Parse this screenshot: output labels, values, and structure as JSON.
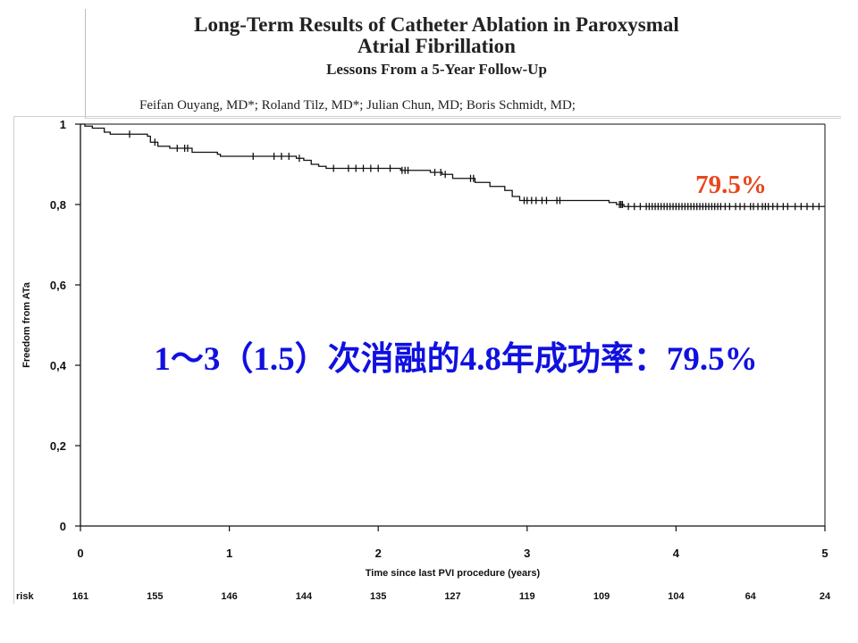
{
  "header": {
    "title_line1": "Long-Term Results of Catheter Ablation in Paroxysmal",
    "title_line2": "Atrial Fibrillation",
    "subtitle": "Lessons From a 5-Year Follow-Up",
    "authors": "Feifan Ouyang, MD*; Roland Tilz, MD*; Julian Chun, MD; Boris Schmidt, MD;"
  },
  "chart_data": {
    "type": "line",
    "subtype": "kaplan-meier",
    "title": "",
    "xlabel": "Time since last PVI procedure (years)",
    "ylabel": "Freedom from ATa",
    "xlim": [
      0,
      5
    ],
    "ylim": [
      0,
      1
    ],
    "x_ticks": [
      "0",
      "1",
      "2",
      "3",
      "4",
      "5"
    ],
    "y_ticks": [
      "0",
      "0,2",
      "0,4",
      "0,6",
      "0,8",
      "1"
    ],
    "series": [
      {
        "name": "Freedom from ATa",
        "color": "#111111",
        "steps": [
          {
            "x": 0,
            "y": 1.0
          },
          {
            "x": 0.03,
            "y": 0.995
          },
          {
            "x": 0.08,
            "y": 0.99
          },
          {
            "x": 0.16,
            "y": 0.98
          },
          {
            "x": 0.2,
            "y": 0.975
          },
          {
            "x": 0.45,
            "y": 0.97
          },
          {
            "x": 0.47,
            "y": 0.955
          },
          {
            "x": 0.52,
            "y": 0.945
          },
          {
            "x": 0.6,
            "y": 0.94
          },
          {
            "x": 0.75,
            "y": 0.93
          },
          {
            "x": 0.92,
            "y": 0.925
          },
          {
            "x": 0.94,
            "y": 0.92
          },
          {
            "x": 1.45,
            "y": 0.915
          },
          {
            "x": 1.5,
            "y": 0.91
          },
          {
            "x": 1.55,
            "y": 0.9
          },
          {
            "x": 1.6,
            "y": 0.895
          },
          {
            "x": 1.65,
            "y": 0.89
          },
          {
            "x": 2.15,
            "y": 0.885
          },
          {
            "x": 2.35,
            "y": 0.88
          },
          {
            "x": 2.43,
            "y": 0.875
          },
          {
            "x": 2.5,
            "y": 0.865
          },
          {
            "x": 2.65,
            "y": 0.855
          },
          {
            "x": 2.75,
            "y": 0.845
          },
          {
            "x": 2.85,
            "y": 0.835
          },
          {
            "x": 2.9,
            "y": 0.82
          },
          {
            "x": 2.95,
            "y": 0.81
          },
          {
            "x": 3.55,
            "y": 0.805
          },
          {
            "x": 3.6,
            "y": 0.8
          },
          {
            "x": 3.65,
            "y": 0.795
          },
          {
            "x": 5.0,
            "y": 0.795
          }
        ],
        "censored": [
          0.33,
          0.5,
          0.65,
          0.7,
          0.72,
          1.16,
          1.3,
          1.35,
          1.4,
          1.47,
          1.7,
          1.8,
          1.85,
          1.9,
          1.95,
          2.0,
          2.08,
          2.16,
          2.18,
          2.2,
          2.38,
          2.42,
          2.45,
          2.62,
          2.64,
          2.98,
          3.0,
          3.03,
          3.06,
          3.1,
          3.13,
          3.2,
          3.22,
          3.62,
          3.63,
          3.64,
          3.68,
          3.72,
          3.76,
          3.8,
          3.82,
          3.84,
          3.86,
          3.88,
          3.9,
          3.92,
          3.94,
          3.96,
          3.98,
          4.0,
          4.02,
          4.04,
          4.06,
          4.08,
          4.1,
          4.12,
          4.14,
          4.16,
          4.18,
          4.2,
          4.22,
          4.24,
          4.26,
          4.28,
          4.3,
          4.33,
          4.36,
          4.4,
          4.43,
          4.46,
          4.5,
          4.52,
          4.55,
          4.58,
          4.6,
          4.62,
          4.65,
          4.68,
          4.72,
          4.75,
          4.8,
          4.84,
          4.88,
          4.92,
          4.96
        ]
      }
    ],
    "final_value_label": "79.5%",
    "annotation": "1～3（1.5）次消融的4.8年成功率：79.5%",
    "risk": {
      "label": "risk",
      "times": [
        0,
        0.5,
        1,
        1.5,
        2,
        2.5,
        3,
        3.5,
        4,
        4.5,
        5
      ],
      "values": [
        "161",
        "155",
        "146",
        "144",
        "135",
        "127",
        "119",
        "109",
        "104",
        "64",
        "24"
      ]
    }
  }
}
